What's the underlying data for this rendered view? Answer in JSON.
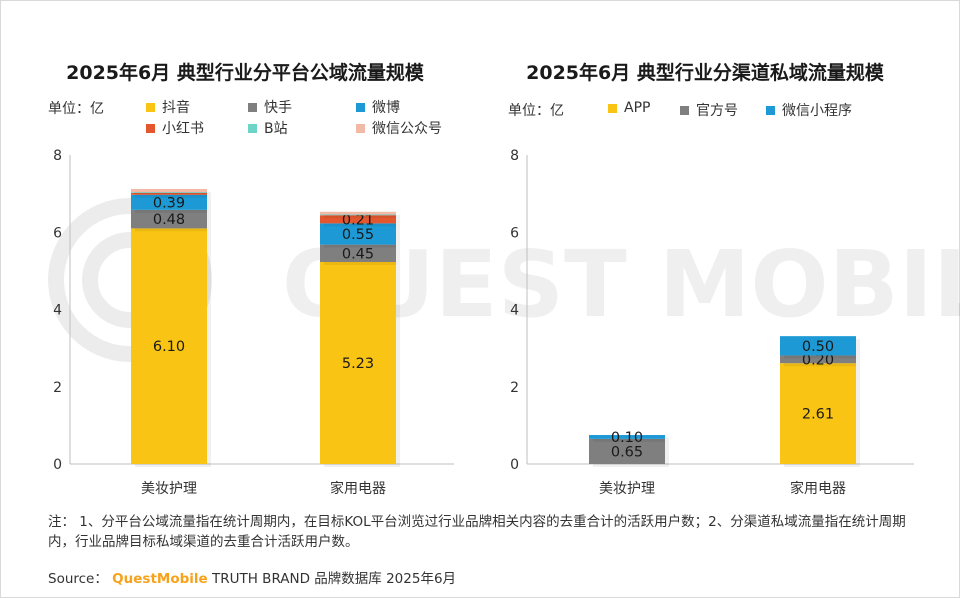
{
  "charts": {
    "left": {
      "unit_label": "单位：亿"
    },
    "right": {
      "unit_label": "单位：亿"
    }
  },
  "chart_data": [
    {
      "type": "bar",
      "stacked": true,
      "title": "2025年6月 典型行业分平台公域流量规模",
      "ylabel": "单位：亿",
      "ylim": [
        0,
        8
      ],
      "yticks": [
        "0",
        "2",
        "4",
        "6",
        "8"
      ],
      "categories": [
        "美妆护理",
        "家用电器"
      ],
      "legend_position": "top",
      "series": [
        {
          "name": "抖音",
          "color": "#f9c413",
          "values": [
            6.1,
            5.23
          ],
          "labels": [
            "6.10",
            "5.23"
          ]
        },
        {
          "name": "快手",
          "color": "#7f7f7f",
          "values": [
            0.48,
            0.45
          ],
          "labels": [
            "0.48",
            "0.45"
          ]
        },
        {
          "name": "微博",
          "color": "#1d9ad6",
          "values": [
            0.39,
            0.55
          ],
          "labels": [
            "0.39",
            "0.55"
          ]
        },
        {
          "name": "小红书",
          "color": "#e4572e",
          "values": [
            0.05,
            0.21
          ],
          "labels": [
            "",
            "0.21"
          ]
        },
        {
          "name": "B站",
          "color": "#6fd3c8",
          "values": [
            0.02,
            0.02
          ],
          "labels": [
            "",
            ""
          ]
        },
        {
          "name": "微信公众号",
          "color": "#f1b9a6",
          "values": [
            0.08,
            0.07
          ],
          "labels": [
            "",
            ""
          ]
        }
      ]
    },
    {
      "type": "bar",
      "stacked": true,
      "title": "2025年6月 典型行业分渠道私域流量规模",
      "ylabel": "单位：亿",
      "ylim": [
        0,
        8
      ],
      "yticks": [
        "0",
        "2",
        "4",
        "6",
        "8"
      ],
      "categories": [
        "美妆护理",
        "家用电器"
      ],
      "legend_position": "top",
      "series": [
        {
          "name": "APP",
          "color": "#f9c413",
          "values": [
            0.0,
            2.61
          ],
          "labels": [
            "",
            "2.61"
          ]
        },
        {
          "name": "官方号",
          "color": "#7f7f7f",
          "values": [
            0.65,
            0.2
          ],
          "labels": [
            "0.65",
            "0.20"
          ]
        },
        {
          "name": "微信小程序",
          "color": "#1d9ad6",
          "values": [
            0.1,
            0.5
          ],
          "labels": [
            "0.10",
            "0.50"
          ]
        }
      ]
    }
  ],
  "footer": {
    "note": "注： 1、分平台公域流量指在统计周期内，在目标KOL平台浏览过行业品牌相关内容的去重合计的活跃用户数；2、分渠道私域流量指在统计周期内，行业品牌目标私域渠道的去重合计活跃用户数。",
    "source_prefix": "Source：",
    "source_brand": "QuestMobile",
    "source_suffix": "TRUTH BRAND 品牌数据库 2025年6月"
  },
  "watermark_text": "QUEST MOBILE"
}
